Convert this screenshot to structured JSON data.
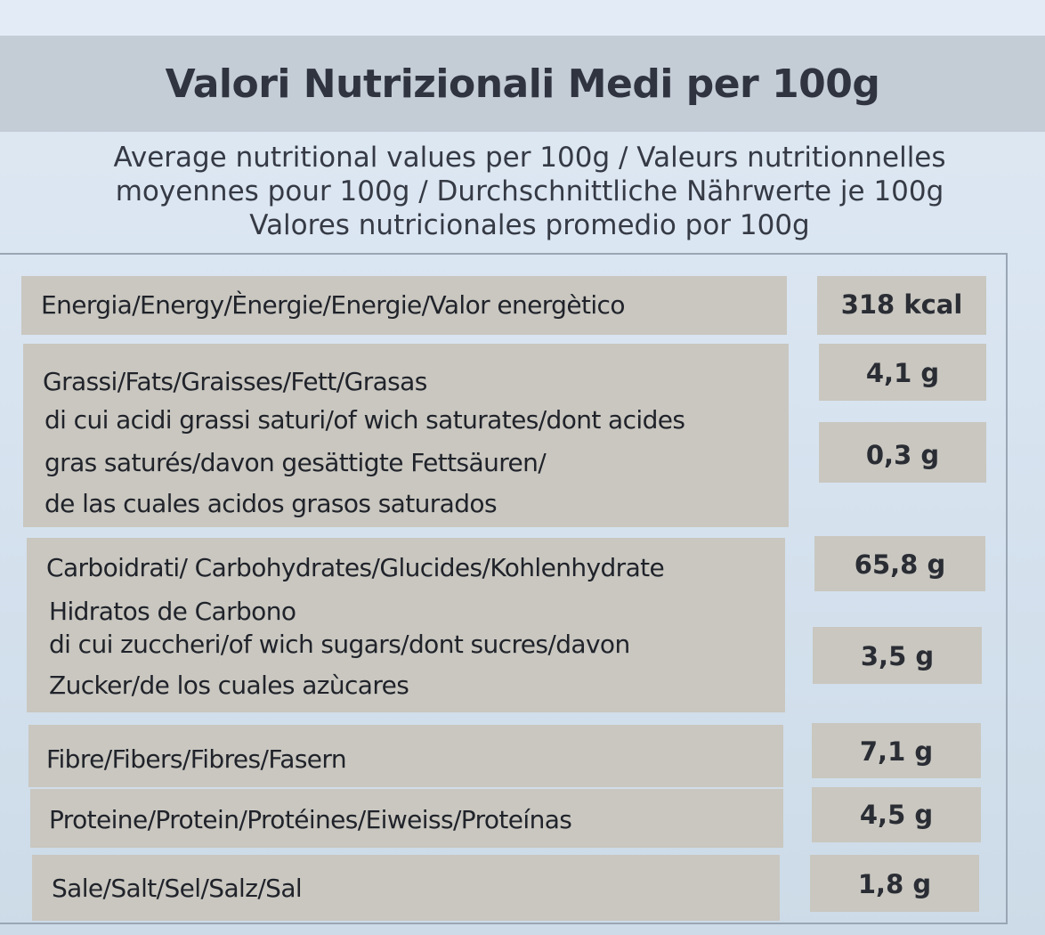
{
  "title": "Valori Nutrizionali Medi per 100g",
  "subtitle": {
    "lines": [
      "Average nutritional values per 100g / Valeurs nutritionnelles",
      "moyennes pour 100g / Durchschnittliche Nährwerte je 100g",
      "Valores nutricionales promedio por 100g"
    ]
  },
  "rows": {
    "energy": {
      "label": "Energia/Energy/Ènergie/Energie/Valor energètico",
      "value": "318 kcal"
    },
    "fats": {
      "label": "Grassi/Fats/Graisses/Fett/Grasas",
      "value": "4,1 g",
      "sub_lines": [
        "di cui acidi grassi saturi/of wich saturates/dont acides",
        "gras saturés/davon gesättigte Fettsäuren/",
        "de las cuales acidos grasos saturados"
      ],
      "sub_value": "0,3 g"
    },
    "carbs": {
      "label_lines": [
        "Carboidrati/ Carbohydrates/Glucides/Kohlenhydrate",
        "Hidratos de Carbono"
      ],
      "value": "65,8 g",
      "sub_lines": [
        "di cui zuccheri/of wich sugars/dont sucres/davon",
        "Zucker/de los cuales azùcares"
      ],
      "sub_value": "3,5 g"
    },
    "fibre": {
      "label": "Fibre/Fibers/Fibres/Fasern",
      "value": "7,1 g"
    },
    "protein": {
      "label": "Proteine/Protein/Protéines/Eiweiss/Proteínas",
      "value": "4,5 g"
    },
    "salt": {
      "label": "Sale/Salt/Sel/Salz/Sal",
      "value": "1,8 g"
    }
  }
}
